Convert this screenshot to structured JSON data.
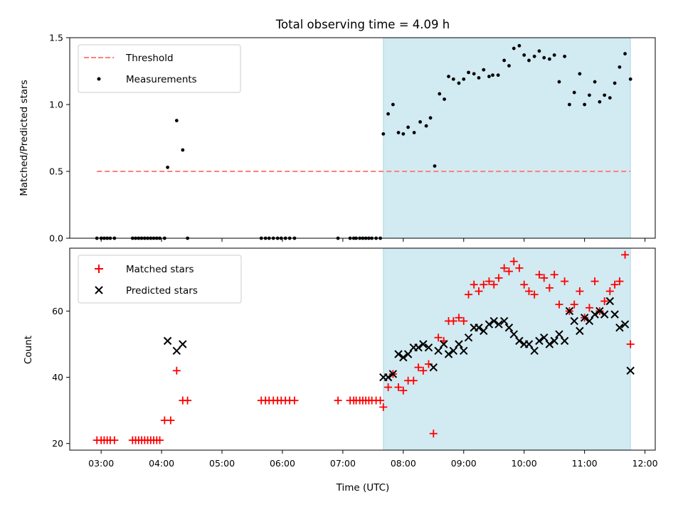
{
  "chart_data": [
    {
      "type": "scatter",
      "panel": "top",
      "title": "Total observing time = 4.09 h",
      "ylabel": "Matched/Predicted stars",
      "xlabel": "",
      "ylim": [
        0,
        1.5
      ],
      "yticks": [
        "0.0",
        "0.5",
        "1.0",
        "1.5"
      ],
      "grid": false,
      "legend_position": "top-left",
      "shaded_span": {
        "x": [
          7.67,
          11.76
        ],
        "color": "#add8e6"
      },
      "series": [
        {
          "name": "Threshold",
          "kind": "dashed-line",
          "color": "#ff7f7f",
          "x": [
            2.93,
            11.76
          ],
          "y": [
            0.5,
            0.5
          ]
        },
        {
          "name": "Measurements",
          "kind": "dots",
          "color": "#000000",
          "x": [
            2.93,
            3.0,
            3.05,
            3.1,
            3.15,
            3.22,
            3.52,
            3.57,
            3.62,
            3.67,
            3.72,
            3.77,
            3.82,
            3.87,
            3.92,
            3.97,
            4.05,
            4.1,
            4.25,
            4.35,
            4.43,
            5.65,
            5.72,
            5.78,
            5.85,
            5.92,
            5.98,
            6.05,
            6.12,
            6.2,
            6.92,
            7.12,
            7.18,
            7.22,
            7.28,
            7.33,
            7.38,
            7.43,
            7.48,
            7.55,
            7.62,
            7.67,
            7.75,
            7.83,
            7.92,
            8.0,
            8.08,
            8.18,
            8.28,
            8.38,
            8.45,
            8.52,
            8.6,
            8.68,
            8.75,
            8.83,
            8.92,
            9.0,
            9.08,
            9.17,
            9.25,
            9.33,
            9.42,
            9.48,
            9.57,
            9.67,
            9.75,
            9.83,
            9.92,
            10.0,
            10.08,
            10.17,
            10.25,
            10.33,
            10.42,
            10.5,
            10.58,
            10.67,
            10.75,
            10.83,
            10.92,
            11.0,
            11.08,
            11.17,
            11.25,
            11.33,
            11.42,
            11.5,
            11.58,
            11.67,
            11.76
          ],
          "y": [
            0,
            0,
            0,
            0,
            0,
            0,
            0,
            0,
            0,
            0,
            0,
            0,
            0,
            0,
            0,
            0,
            0,
            0.53,
            0.88,
            0.66,
            0,
            0,
            0,
            0,
            0,
            0,
            0,
            0,
            0,
            0,
            0,
            0,
            0,
            0,
            0,
            0,
            0,
            0,
            0,
            0,
            0,
            0.78,
            0.93,
            1.0,
            0.79,
            0.78,
            0.83,
            0.79,
            0.87,
            0.84,
            0.9,
            0.54,
            1.08,
            1.04,
            1.21,
            1.19,
            1.16,
            1.19,
            1.24,
            1.23,
            1.2,
            1.26,
            1.21,
            1.22,
            1.22,
            1.33,
            1.29,
            1.42,
            1.44,
            1.37,
            1.33,
            1.36,
            1.4,
            1.35,
            1.34,
            1.37,
            1.17,
            1.36,
            1.0,
            1.09,
            1.23,
            1.0,
            1.07,
            1.17,
            1.02,
            1.07,
            1.05,
            1.16,
            1.28,
            1.38,
            1.19
          ]
        }
      ]
    },
    {
      "type": "scatter",
      "panel": "bottom",
      "ylabel": "Count",
      "xlabel": "Time (UTC)",
      "ylim": [
        18,
        79
      ],
      "yticks": [
        "20",
        "40",
        "60"
      ],
      "xlim": [
        2.48,
        12.17
      ],
      "xticks": [
        "03:00",
        "04:00",
        "05:00",
        "06:00",
        "07:00",
        "08:00",
        "09:00",
        "10:00",
        "11:00",
        "12:00"
      ],
      "grid": false,
      "legend_position": "top-left",
      "shaded_span": {
        "x": [
          7.67,
          11.76
        ],
        "color": "#add8e6"
      },
      "series": [
        {
          "name": "Matched stars",
          "kind": "plus",
          "color": "#ff0000",
          "x": [
            2.93,
            3.0,
            3.05,
            3.1,
            3.15,
            3.22,
            3.52,
            3.57,
            3.62,
            3.67,
            3.72,
            3.77,
            3.82,
            3.87,
            3.92,
            3.97,
            4.05,
            4.15,
            4.25,
            4.35,
            4.43,
            5.65,
            5.72,
            5.78,
            5.85,
            5.92,
            5.98,
            6.05,
            6.12,
            6.2,
            6.92,
            7.12,
            7.18,
            7.22,
            7.28,
            7.33,
            7.38,
            7.43,
            7.48,
            7.55,
            7.62,
            7.67,
            7.75,
            7.83,
            7.92,
            8.0,
            8.08,
            8.17,
            8.25,
            8.33,
            8.42,
            8.5,
            8.58,
            8.67,
            8.75,
            8.83,
            8.92,
            9.0,
            9.08,
            9.17,
            9.25,
            9.33,
            9.42,
            9.5,
            9.58,
            9.67,
            9.75,
            9.83,
            9.92,
            10.0,
            10.08,
            10.17,
            10.25,
            10.33,
            10.42,
            10.5,
            10.58,
            10.67,
            10.75,
            10.83,
            10.92,
            11.0,
            11.08,
            11.17,
            11.25,
            11.33,
            11.42,
            11.5,
            11.58,
            11.67,
            11.76
          ],
          "y": [
            21,
            21,
            21,
            21,
            21,
            21,
            21,
            21,
            21,
            21,
            21,
            21,
            21,
            21,
            21,
            21,
            27,
            27,
            42,
            33,
            33,
            33,
            33,
            33,
            33,
            33,
            33,
            33,
            33,
            33,
            33,
            33,
            33,
            33,
            33,
            33,
            33,
            33,
            33,
            33,
            33,
            31,
            37,
            41,
            37,
            36,
            39,
            39,
            43,
            42,
            44,
            23,
            52,
            51,
            57,
            57,
            58,
            57,
            65,
            68,
            66,
            68,
            69,
            68,
            70,
            73,
            72,
            75,
            73,
            68,
            66,
            65,
            71,
            70,
            67,
            71,
            62,
            69,
            60,
            62,
            66,
            58,
            61,
            69,
            60,
            63,
            66,
            68,
            69,
            77,
            50
          ]
        },
        {
          "name": "Predicted stars",
          "kind": "x",
          "color": "#000000",
          "x": [
            4.1,
            4.25,
            4.35,
            7.67,
            7.75,
            7.83,
            7.92,
            8.0,
            8.08,
            8.17,
            8.25,
            8.33,
            8.42,
            8.5,
            8.58,
            8.67,
            8.75,
            8.83,
            8.92,
            9.0,
            9.08,
            9.17,
            9.25,
            9.33,
            9.42,
            9.5,
            9.58,
            9.67,
            9.75,
            9.83,
            9.92,
            10.0,
            10.08,
            10.17,
            10.25,
            10.33,
            10.42,
            10.5,
            10.58,
            10.67,
            10.75,
            10.83,
            10.92,
            11.0,
            11.08,
            11.17,
            11.25,
            11.33,
            11.42,
            11.5,
            11.58,
            11.67,
            11.76
          ],
          "y": [
            51,
            48,
            50,
            40,
            40,
            41,
            47,
            46,
            47,
            49,
            49,
            50,
            49,
            43,
            48,
            50,
            47,
            48,
            50,
            48,
            52,
            55,
            55,
            54,
            56,
            57,
            56,
            57,
            55,
            53,
            51,
            50,
            50,
            48,
            51,
            52,
            50,
            51,
            53,
            51,
            60,
            57,
            54,
            58,
            57,
            59,
            60,
            59,
            63,
            59,
            55,
            56,
            42
          ]
        }
      ]
    }
  ]
}
